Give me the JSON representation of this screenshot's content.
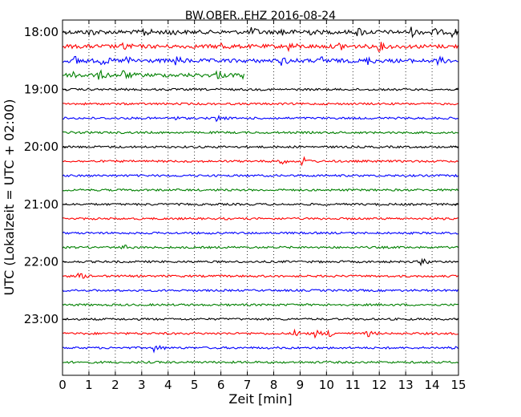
{
  "chart_data": {
    "type": "line",
    "title": "BW.OBER..EHZ 2016-08-24",
    "xlabel": "Zeit  [min]",
    "ylabel": "UTC (Lokalzeit = UTC + 02:00)",
    "xlim": [
      0,
      15
    ],
    "xticks": [
      "0",
      "1",
      "2",
      "3",
      "4",
      "5",
      "6",
      "7",
      "8",
      "9",
      "10",
      "11",
      "12",
      "13",
      "14",
      "15"
    ],
    "grid": "vertical dotted",
    "hour_labels": [
      "18:00",
      "19:00",
      "20:00",
      "21:00",
      "22:00",
      "23:00"
    ],
    "trace_colors": [
      "#000000",
      "#ff0000",
      "#0000ff",
      "#008000"
    ],
    "traces": [
      {
        "start": "18:00",
        "end_min": 15,
        "color": "#000000",
        "amp": "high",
        "events": [
          1.0,
          3.1,
          4.0,
          7.2,
          8.3,
          9.2,
          11.2,
          13.2,
          14.0,
          14.8
        ]
      },
      {
        "start": "18:15",
        "end_min": 15,
        "color": "#ff0000",
        "amp": "high",
        "events": [
          2.3,
          6.0,
          8.6,
          10.5,
          12.0
        ]
      },
      {
        "start": "18:30",
        "end_min": 15,
        "color": "#0000ff",
        "amp": "high",
        "events": [
          0.5,
          1.5,
          2.4,
          4.3,
          8.3,
          9.8,
          11.5,
          14.2
        ]
      },
      {
        "start": "18:45",
        "end_min": 6.9,
        "color": "#008000",
        "amp": "high",
        "events": [
          0.4,
          1.4,
          2.3,
          5.8,
          6.8
        ]
      },
      {
        "start": "19:00",
        "end_min": 15,
        "color": "#000000",
        "amp": "low",
        "events": []
      },
      {
        "start": "19:15",
        "end_min": 15,
        "color": "#ff0000",
        "amp": "low",
        "events": []
      },
      {
        "start": "19:30",
        "end_min": 15,
        "color": "#0000ff",
        "amp": "low",
        "events": [
          4.1,
          5.8
        ]
      },
      {
        "start": "19:45",
        "end_min": 15,
        "color": "#008000",
        "amp": "low",
        "events": []
      },
      {
        "start": "20:00",
        "end_min": 15,
        "color": "#000000",
        "amp": "low",
        "events": []
      },
      {
        "start": "20:15",
        "end_min": 15,
        "color": "#ff0000",
        "amp": "low",
        "events": [
          8.2,
          9.1
        ]
      },
      {
        "start": "20:30",
        "end_min": 15,
        "color": "#0000ff",
        "amp": "low",
        "events": []
      },
      {
        "start": "20:45",
        "end_min": 15,
        "color": "#008000",
        "amp": "low",
        "events": []
      },
      {
        "start": "21:00",
        "end_min": 15,
        "color": "#000000",
        "amp": "low",
        "events": []
      },
      {
        "start": "21:15",
        "end_min": 15,
        "color": "#ff0000",
        "amp": "low",
        "events": []
      },
      {
        "start": "21:30",
        "end_min": 15,
        "color": "#0000ff",
        "amp": "low",
        "events": []
      },
      {
        "start": "21:45",
        "end_min": 15,
        "color": "#008000",
        "amp": "low",
        "events": [
          2.2
        ]
      },
      {
        "start": "22:00",
        "end_min": 15,
        "color": "#000000",
        "amp": "low",
        "events": [
          13.6
        ]
      },
      {
        "start": "22:15",
        "end_min": 15,
        "color": "#ff0000",
        "amp": "low",
        "events": [
          0.6
        ]
      },
      {
        "start": "22:30",
        "end_min": 15,
        "color": "#0000ff",
        "amp": "low",
        "events": []
      },
      {
        "start": "22:45",
        "end_min": 15,
        "color": "#008000",
        "amp": "low",
        "events": []
      },
      {
        "start": "23:00",
        "end_min": 15,
        "color": "#000000",
        "amp": "low",
        "events": []
      },
      {
        "start": "23:15",
        "end_min": 15,
        "color": "#ff0000",
        "amp": "low",
        "events": [
          8.8,
          9.6,
          10.1,
          11.5
        ]
      },
      {
        "start": "23:30",
        "end_min": 15,
        "color": "#0000ff",
        "amp": "low",
        "events": [
          3.5,
          14.5
        ]
      },
      {
        "start": "23:45",
        "end_min": 15,
        "color": "#008000",
        "amp": "low",
        "events": []
      }
    ]
  }
}
